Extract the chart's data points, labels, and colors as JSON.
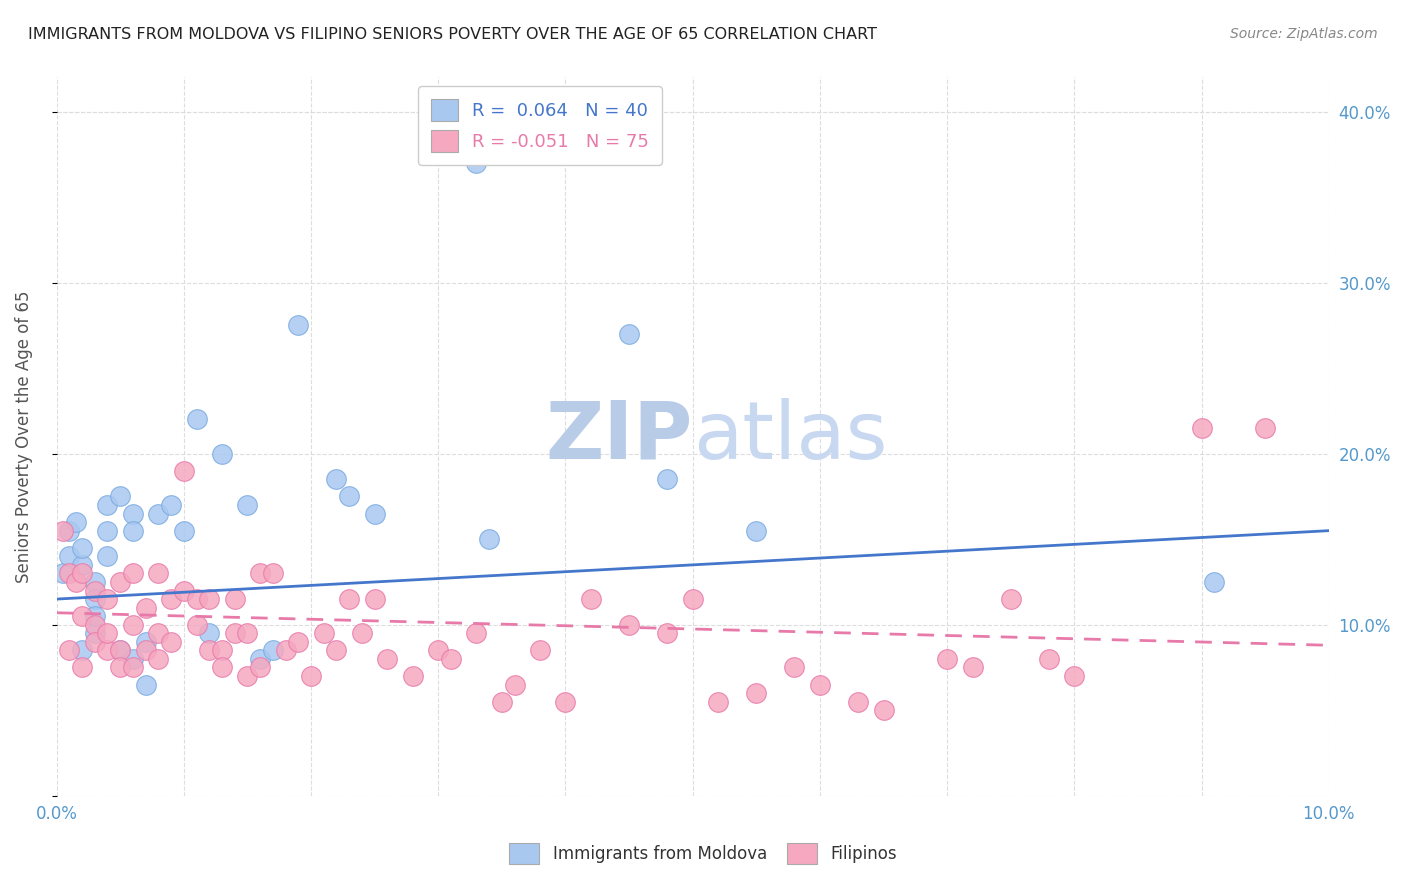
{
  "title": "IMMIGRANTS FROM MOLDOVA VS FILIPINO SENIORS POVERTY OVER THE AGE OF 65 CORRELATION CHART",
  "source": "Source: ZipAtlas.com",
  "ylabel": "Seniors Poverty Over the Age of 65",
  "xlim": [
    0.0,
    0.1
  ],
  "ylim": [
    0.0,
    0.42
  ],
  "yticks_right": [
    0.1,
    0.2,
    0.3,
    0.4
  ],
  "xtick_labels_only": [
    0.0,
    0.1
  ],
  "legend_labels": [
    "Immigrants from Moldova",
    "Filipinos"
  ],
  "blue_color": "#a8c8f0",
  "blue_edge": "#7aaae0",
  "pink_color": "#f5a8c0",
  "pink_edge": "#e87aaa",
  "blue_line_color": "#4477cc",
  "pink_line_color": "#e87aaa",
  "background_color": "#ffffff",
  "watermark_color": "#dce8f5",
  "grid_color": "#dddddd",
  "axis_label_color": "#5599cc",
  "title_color": "#222222",
  "blue_scatter_x": [
    0.0005,
    0.001,
    0.001,
    0.0015,
    0.002,
    0.002,
    0.002,
    0.003,
    0.003,
    0.003,
    0.003,
    0.004,
    0.004,
    0.004,
    0.005,
    0.005,
    0.006,
    0.006,
    0.006,
    0.007,
    0.007,
    0.008,
    0.009,
    0.01,
    0.011,
    0.012,
    0.013,
    0.015,
    0.016,
    0.017,
    0.019,
    0.022,
    0.023,
    0.025,
    0.033,
    0.034,
    0.045,
    0.048,
    0.055,
    0.091
  ],
  "blue_scatter_y": [
    0.13,
    0.155,
    0.14,
    0.16,
    0.135,
    0.145,
    0.085,
    0.125,
    0.115,
    0.095,
    0.105,
    0.17,
    0.14,
    0.155,
    0.175,
    0.085,
    0.165,
    0.155,
    0.08,
    0.09,
    0.065,
    0.165,
    0.17,
    0.155,
    0.22,
    0.095,
    0.2,
    0.17,
    0.08,
    0.085,
    0.275,
    0.185,
    0.175,
    0.165,
    0.37,
    0.15,
    0.27,
    0.185,
    0.155,
    0.125
  ],
  "pink_scatter_x": [
    0.0005,
    0.001,
    0.001,
    0.0015,
    0.002,
    0.002,
    0.002,
    0.003,
    0.003,
    0.003,
    0.004,
    0.004,
    0.004,
    0.005,
    0.005,
    0.005,
    0.006,
    0.006,
    0.006,
    0.007,
    0.007,
    0.008,
    0.008,
    0.008,
    0.009,
    0.009,
    0.01,
    0.01,
    0.011,
    0.011,
    0.012,
    0.012,
    0.013,
    0.013,
    0.014,
    0.014,
    0.015,
    0.015,
    0.016,
    0.016,
    0.017,
    0.018,
    0.019,
    0.02,
    0.021,
    0.022,
    0.023,
    0.024,
    0.025,
    0.026,
    0.028,
    0.03,
    0.031,
    0.033,
    0.035,
    0.036,
    0.038,
    0.04,
    0.042,
    0.045,
    0.048,
    0.05,
    0.052,
    0.055,
    0.058,
    0.06,
    0.063,
    0.065,
    0.07,
    0.072,
    0.075,
    0.078,
    0.08,
    0.09,
    0.095
  ],
  "pink_scatter_y": [
    0.155,
    0.13,
    0.085,
    0.125,
    0.105,
    0.13,
    0.075,
    0.12,
    0.1,
    0.09,
    0.115,
    0.085,
    0.095,
    0.125,
    0.085,
    0.075,
    0.13,
    0.1,
    0.075,
    0.11,
    0.085,
    0.13,
    0.095,
    0.08,
    0.115,
    0.09,
    0.19,
    0.12,
    0.115,
    0.1,
    0.115,
    0.085,
    0.085,
    0.075,
    0.115,
    0.095,
    0.095,
    0.07,
    0.13,
    0.075,
    0.13,
    0.085,
    0.09,
    0.07,
    0.095,
    0.085,
    0.115,
    0.095,
    0.115,
    0.08,
    0.07,
    0.085,
    0.08,
    0.095,
    0.055,
    0.065,
    0.085,
    0.055,
    0.115,
    0.1,
    0.095,
    0.115,
    0.055,
    0.06,
    0.075,
    0.065,
    0.055,
    0.05,
    0.08,
    0.075,
    0.115,
    0.08,
    0.07,
    0.215,
    0.215
  ],
  "blue_trend_x": [
    0.0,
    0.1
  ],
  "blue_trend_y": [
    0.115,
    0.155
  ],
  "pink_trend_x": [
    0.0,
    0.1
  ],
  "pink_trend_y": [
    0.107,
    0.088
  ]
}
